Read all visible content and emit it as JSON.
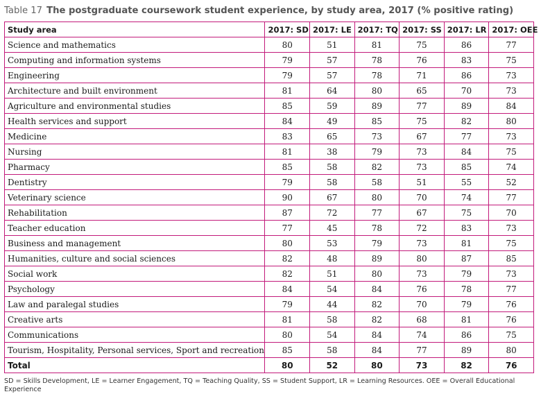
{
  "caption": {
    "number": "Table 17",
    "title": "The postgraduate coursework student experience, by study area, 2017 (% positive rating)"
  },
  "table": {
    "headers": [
      "Study area",
      "2017: SD",
      "2017: LE",
      "2017: TQ",
      "2017: SS",
      "2017: LR",
      "2017: OEE"
    ],
    "rows": [
      [
        "Science and mathematics",
        "80",
        "51",
        "81",
        "75",
        "86",
        "77"
      ],
      [
        "Computing and information systems",
        "79",
        "57",
        "78",
        "76",
        "83",
        "75"
      ],
      [
        "Engineering",
        "79",
        "57",
        "78",
        "71",
        "86",
        "73"
      ],
      [
        "Architecture and built environment",
        "81",
        "64",
        "80",
        "65",
        "70",
        "73"
      ],
      [
        "Agriculture and environmental studies",
        "85",
        "59",
        "89",
        "77",
        "89",
        "84"
      ],
      [
        "Health services and support",
        "84",
        "49",
        "85",
        "75",
        "82",
        "80"
      ],
      [
        "Medicine",
        "83",
        "65",
        "73",
        "67",
        "77",
        "73"
      ],
      [
        "Nursing",
        "81",
        "38",
        "79",
        "73",
        "84",
        "75"
      ],
      [
        "Pharmacy",
        "85",
        "58",
        "82",
        "73",
        "85",
        "74"
      ],
      [
        "Dentistry",
        "79",
        "58",
        "58",
        "51",
        "55",
        "52"
      ],
      [
        "Veterinary science",
        "90",
        "67",
        "80",
        "70",
        "74",
        "77"
      ],
      [
        "Rehabilitation",
        "87",
        "72",
        "77",
        "67",
        "75",
        "70"
      ],
      [
        "Teacher education",
        "77",
        "45",
        "78",
        "72",
        "83",
        "73"
      ],
      [
        "Business and management",
        "80",
        "53",
        "79",
        "73",
        "81",
        "75"
      ],
      [
        "Humanities, culture and social sciences",
        "82",
        "48",
        "89",
        "80",
        "87",
        "85"
      ],
      [
        "Social work",
        "82",
        "51",
        "80",
        "73",
        "79",
        "73"
      ],
      [
        "Psychology",
        "84",
        "54",
        "84",
        "76",
        "78",
        "77"
      ],
      [
        "Law and paralegal studies",
        "79",
        "44",
        "82",
        "70",
        "79",
        "76"
      ],
      [
        "Creative arts",
        "81",
        "58",
        "82",
        "68",
        "81",
        "76"
      ],
      [
        "Communications",
        "80",
        "54",
        "84",
        "74",
        "86",
        "75"
      ],
      [
        "Tourism, Hospitality, Personal services, Sport and recreation",
        "85",
        "58",
        "84",
        "77",
        "89",
        "80"
      ]
    ],
    "total": [
      "Total",
      "80",
      "52",
      "80",
      "73",
      "82",
      "76"
    ]
  },
  "footnote": "SD = Skills Development, LE = Learner Engagement, TQ = Teaching Quality, SS = Student Support, LR = Learning Resources. OEE = Overall Educational Experience"
}
